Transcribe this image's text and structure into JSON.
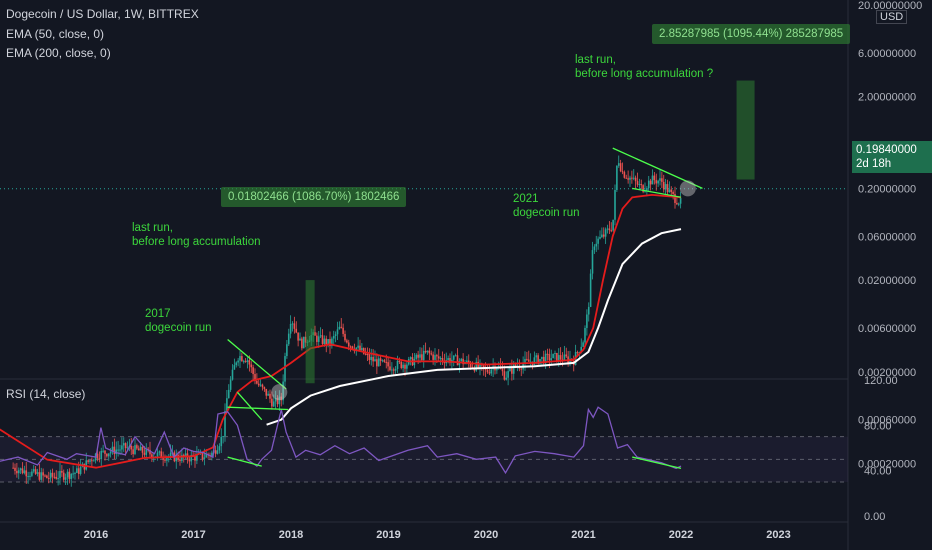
{
  "header": {
    "symbol": "Dogecoin / US Dollar, 1W, BITTREX",
    "indicator_1": "EMA (50, close, 0)",
    "indicator_2": "EMA (200, close, 0)",
    "currency": "USD"
  },
  "rsi_panel": {
    "label": "RSI (14, close)"
  },
  "price_badge": {
    "value": "0.19840000",
    "countdown": "2d 18h",
    "color": "#1e6f4e"
  },
  "annotations": {
    "run_2017": "2017\ndogecoin run",
    "run_2021": "2021\ndogecoin run",
    "last_run_2017": "last run,\nbefore long accumulation",
    "last_run_now": "last run,\nbefore long accumulation ?"
  },
  "measurements": {
    "m_2017": "0.01802466 (1086.70%) 1802466",
    "m_2022": "2.85287985 (1095.44%) 285287985"
  },
  "colors": {
    "background": "#131722",
    "price_up": "#26a69a",
    "price_down": "#ef5350",
    "ema50": "#e51c1c",
    "ema200": "#ffffff",
    "trendline": "#4cff4c",
    "rsi": "#7e57c2"
  },
  "chart_data": [
    {
      "type": "line",
      "name": "price",
      "log_scale": true,
      "x_ticks": [
        "2016",
        "2017",
        "2018",
        "2019",
        "2020",
        "2021",
        "2022",
        "2023"
      ],
      "y_ticks": [
        "20.00000000",
        "6.00000000",
        "2.00000000",
        "0.60000000",
        "0.20000000",
        "0.06000000",
        "0.02000000",
        "0.00600000",
        "0.00200000",
        "0.00060000",
        "0.00020000"
      ],
      "ylim": [
        0.00018,
        20
      ],
      "series": [
        {
          "x": [
            2015.15,
            2015.5,
            2015.8,
            2016.0,
            2016.3,
            2016.6,
            2016.9,
            2017.1,
            2017.2,
            2017.3,
            2017.35,
            2017.45,
            2017.55,
            2017.65,
            2017.75,
            2017.82,
            2017.9,
            2017.95,
            2018.0,
            2018.1,
            2018.2,
            2018.3,
            2018.4,
            2018.5,
            2018.6,
            2018.7,
            2018.8,
            2018.9,
            2019.0,
            2019.2,
            2019.4,
            2019.5,
            2019.7,
            2019.9,
            2020.0,
            2020.1,
            2020.2,
            2020.3,
            2020.5,
            2020.7,
            2020.9,
            2021.0,
            2021.05,
            2021.1,
            2021.2,
            2021.3,
            2021.35,
            2021.4,
            2021.5,
            2021.6,
            2021.7,
            2021.8,
            2021.9,
            2022.0
          ],
          "y": [
            0.00018,
            0.00014,
            0.00016,
            0.00025,
            0.0003,
            0.00025,
            0.00023,
            0.00024,
            0.00026,
            0.0004,
            0.0012,
            0.003,
            0.0028,
            0.0015,
            0.00115,
            0.0009,
            0.001,
            0.004,
            0.008,
            0.004,
            0.005,
            0.0045,
            0.004,
            0.006,
            0.004,
            0.0035,
            0.0028,
            0.0025,
            0.0023,
            0.0025,
            0.0032,
            0.0028,
            0.0027,
            0.0023,
            0.002,
            0.0024,
            0.0018,
            0.0023,
            0.0027,
            0.0029,
            0.0027,
            0.0045,
            0.01,
            0.05,
            0.06,
            0.08,
            0.45,
            0.3,
            0.25,
            0.2,
            0.25,
            0.24,
            0.17,
            0.14
          ]
        }
      ]
    },
    {
      "type": "line",
      "name": "EMA (50, close, 0)",
      "series": [
        {
          "x": [
            2015.0,
            2015.5,
            2016.0,
            2016.5,
            2017.0,
            2017.2,
            2017.3,
            2017.45,
            2017.6,
            2017.8,
            2018.0,
            2018.2,
            2018.4,
            2018.8,
            2019.2,
            2019.6,
            2020.0,
            2020.5,
            2020.9,
            2021.0,
            2021.1,
            2021.2,
            2021.3,
            2021.4,
            2021.5,
            2021.7,
            2022.0
          ],
          "y": [
            0.00048,
            0.00022,
            0.00018,
            0.00023,
            0.00024,
            0.0003,
            0.0006,
            0.0012,
            0.0016,
            0.0018,
            0.0025,
            0.0036,
            0.004,
            0.0032,
            0.0026,
            0.0026,
            0.0024,
            0.0025,
            0.0027,
            0.0035,
            0.006,
            0.02,
            0.06,
            0.12,
            0.16,
            0.17,
            0.16
          ]
        }
      ]
    },
    {
      "type": "line",
      "name": "EMA (200, close, 0)",
      "series": [
        {
          "x": [
            2017.75,
            2017.9,
            2018.0,
            2018.2,
            2018.5,
            2019.0,
            2019.5,
            2020.0,
            2020.5,
            2020.9,
            2021.05,
            2021.15,
            2021.25,
            2021.4,
            2021.6,
            2021.8,
            2022.0
          ],
          "y": [
            0.00053,
            0.0006,
            0.0008,
            0.0011,
            0.0014,
            0.0018,
            0.0021,
            0.0022,
            0.0023,
            0.0025,
            0.0033,
            0.006,
            0.012,
            0.03,
            0.05,
            0.065,
            0.072
          ]
        }
      ]
    },
    {
      "type": "line",
      "name": "RSI (14, close)",
      "y_ticks": [
        "120.00",
        "80.00",
        "40.00",
        "0.00"
      ],
      "ylim": [
        0,
        120
      ],
      "bands": [
        30,
        50,
        70
      ],
      "series": [
        {
          "x": [
            2015.0,
            2015.2,
            2015.4,
            2015.5,
            2015.7,
            2015.8,
            2016.0,
            2016.05,
            2016.1,
            2016.2,
            2016.3,
            2016.4,
            2016.5,
            2016.6,
            2016.7,
            2016.8,
            2016.9,
            2017.0,
            2017.1,
            2017.2,
            2017.25,
            2017.35,
            2017.45,
            2017.55,
            2017.65,
            2017.7,
            2017.8,
            2017.9,
            2017.95,
            2018.05,
            2018.15,
            2018.3,
            2018.45,
            2018.6,
            2018.75,
            2018.9,
            2019.0,
            2019.2,
            2019.4,
            2019.5,
            2019.7,
            2019.9,
            2020.1,
            2020.2,
            2020.3,
            2020.5,
            2020.7,
            2020.9,
            2021.0,
            2021.05,
            2021.1,
            2021.15,
            2021.25,
            2021.35,
            2021.45,
            2021.55,
            2021.65,
            2021.8,
            2021.95,
            2022.0
          ],
          "y": [
            48,
            52,
            45,
            56,
            50,
            55,
            52,
            78,
            60,
            56,
            54,
            70,
            60,
            55,
            74,
            52,
            60,
            57,
            56,
            52,
            90,
            92,
            80,
            50,
            44,
            50,
            58,
            94,
            74,
            52,
            58,
            54,
            62,
            55,
            60,
            49,
            52,
            58,
            62,
            52,
            55,
            50,
            52,
            38,
            53,
            57,
            55,
            52,
            62,
            94,
            87,
            96,
            90,
            60,
            63,
            52,
            50,
            47,
            42,
            44
          ]
        }
      ]
    }
  ]
}
